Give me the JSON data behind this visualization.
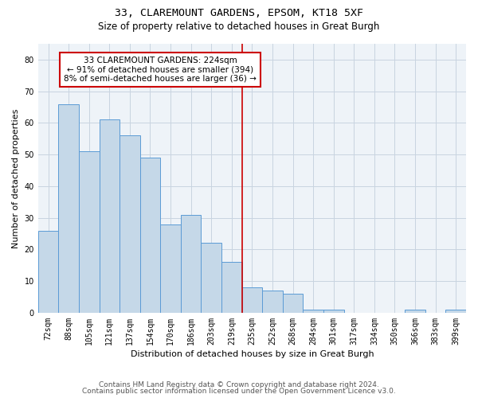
{
  "title1": "33, CLAREMOUNT GARDENS, EPSOM, KT18 5XF",
  "title2": "Size of property relative to detached houses in Great Burgh",
  "xlabel": "Distribution of detached houses by size in Great Burgh",
  "ylabel": "Number of detached properties",
  "footer1": "Contains HM Land Registry data © Crown copyright and database right 2024.",
  "footer2": "Contains public sector information licensed under the Open Government Licence v3.0.",
  "categories": [
    "72sqm",
    "88sqm",
    "105sqm",
    "121sqm",
    "137sqm",
    "154sqm",
    "170sqm",
    "186sqm",
    "203sqm",
    "219sqm",
    "235sqm",
    "252sqm",
    "268sqm",
    "284sqm",
    "301sqm",
    "317sqm",
    "334sqm",
    "350sqm",
    "366sqm",
    "383sqm",
    "399sqm"
  ],
  "values": [
    26,
    66,
    51,
    61,
    56,
    49,
    28,
    31,
    22,
    16,
    8,
    7,
    6,
    1,
    1,
    0,
    0,
    0,
    1,
    0,
    1
  ],
  "bar_color": "#c5d8e8",
  "bar_edge_color": "#5b9bd5",
  "vline_x": 9.5,
  "vline_color": "#cc0000",
  "annotation_line1": "33 CLAREMOUNT GARDENS: 224sqm",
  "annotation_line2": "← 91% of detached houses are smaller (394)",
  "annotation_line3": "8% of semi-detached houses are larger (36) →",
  "annotation_box_color": "#cc0000",
  "ylim": [
    0,
    85
  ],
  "yticks": [
    0,
    10,
    20,
    30,
    40,
    50,
    60,
    70,
    80
  ],
  "grid_color": "#c8d4e0",
  "bg_color": "#eef3f8",
  "title_fontsize": 9.5,
  "subtitle_fontsize": 8.5,
  "axis_label_fontsize": 8,
  "tick_fontsize": 7,
  "annotation_fontsize": 7.5,
  "footer_fontsize": 6.5
}
